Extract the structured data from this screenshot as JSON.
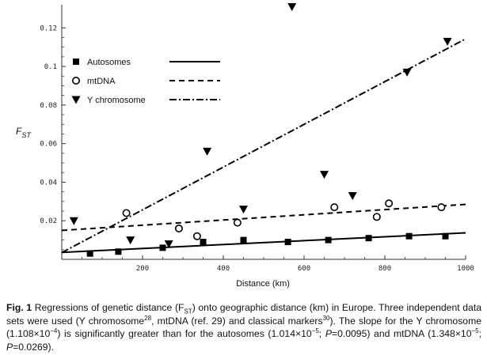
{
  "chart_data": {
    "type": "scatter",
    "title": "",
    "xlabel": "Distance (km)",
    "ylabel_main": "F",
    "ylabel_sub": "ST",
    "xlim": [
      0,
      1000
    ],
    "ylim": [
      0,
      0.132
    ],
    "x_ticks": [
      200,
      400,
      600,
      800,
      1000
    ],
    "y_ticks": [
      0.02,
      0.04,
      0.06,
      0.08,
      0.1,
      0.12
    ],
    "x_tick_labels": [
      "200",
      "400",
      "600",
      "800",
      "1000"
    ],
    "y_tick_labels": [
      "0.02",
      "0.04",
      "0.06",
      "0.08",
      "0.1",
      "0.12"
    ],
    "legend_position": "top-left",
    "series": [
      {
        "name": "Autosomes",
        "marker": "square-filled",
        "line_style": "solid",
        "points": [
          [
            70,
            0.003
          ],
          [
            140,
            0.004
          ],
          [
            250,
            0.006
          ],
          [
            350,
            0.009
          ],
          [
            450,
            0.01
          ],
          [
            560,
            0.009
          ],
          [
            660,
            0.01
          ],
          [
            760,
            0.011
          ],
          [
            860,
            0.012
          ],
          [
            950,
            0.012
          ]
        ],
        "fit": {
          "intercept": 0.0036,
          "slope": 1.014e-05
        }
      },
      {
        "name": "mtDNA",
        "marker": "circle-open",
        "line_style": "dashed",
        "points": [
          [
            160,
            0.024
          ],
          [
            290,
            0.016
          ],
          [
            335,
            0.012
          ],
          [
            435,
            0.019
          ],
          [
            675,
            0.027
          ],
          [
            780,
            0.022
          ],
          [
            810,
            0.029
          ],
          [
            940,
            0.027
          ]
        ],
        "fit": {
          "intercept": 0.015,
          "slope": 1.348e-05
        }
      },
      {
        "name": "Y chromosome",
        "marker": "triangle-down-filled",
        "line_style": "dash-dot",
        "points": [
          [
            30,
            0.02
          ],
          [
            170,
            0.01
          ],
          [
            265,
            0.008
          ],
          [
            360,
            0.056
          ],
          [
            450,
            0.026
          ],
          [
            570,
            0.131
          ],
          [
            650,
            0.044
          ],
          [
            720,
            0.033
          ],
          [
            855,
            0.097
          ],
          [
            955,
            0.113
          ]
        ],
        "fit": {
          "intercept": 0.0035,
          "slope": 0.0001108
        }
      }
    ]
  },
  "caption": {
    "fig_label": "Fig. 1",
    "t1": " Regressions of genetic distance (F",
    "t1_sub": "ST",
    "t2": ") onto geographic distance (km) in Europe. Three independent data sets were used (Y chromosome",
    "ref1": "28",
    "t3": ", mtDNA (ref. 29) and classical markers",
    "ref2": "30",
    "t4": "). The slope for the Y chromosome (1.108×10",
    "exp1": "−4",
    "t5": ") is significantly greater than for the autosomes (1.014×10",
    "exp2": "−5",
    "t6": "; ",
    "p_label1": "P",
    "t7": "=0.0095) and mtDNA (1.348×10",
    "exp3": "−5",
    "t8": "; ",
    "p_label2": "P",
    "t9": "=0.0269)."
  }
}
